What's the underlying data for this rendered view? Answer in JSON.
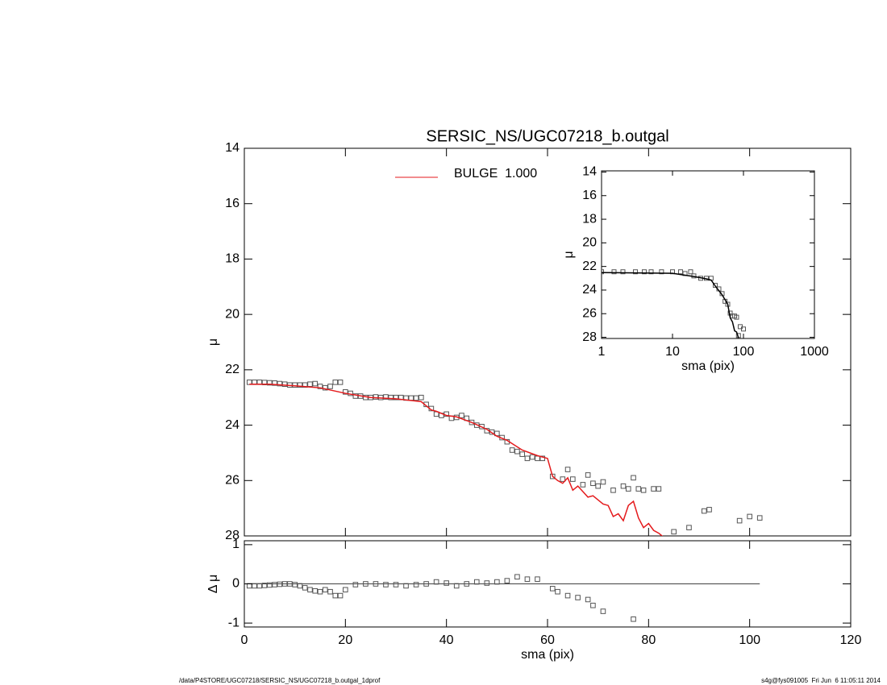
{
  "chart_data": [
    {
      "type": "scatter",
      "title": "SERSIC_NS/UGC07218_b.outgal",
      "y_label": "μ",
      "xlim": [
        0,
        120
      ],
      "ylim": [
        28,
        14
      ],
      "yticks": [
        14,
        16,
        18,
        20,
        22,
        24,
        26,
        28
      ],
      "legend": "top-right",
      "series": [
        {
          "style": "markers",
          "color": "#555555",
          "x": [
            1,
            2,
            3,
            4,
            5,
            6,
            7,
            8,
            9,
            10,
            11,
            12,
            13,
            14,
            15,
            16,
            17,
            18,
            19,
            20,
            21,
            22,
            23,
            24,
            25,
            26,
            27,
            28,
            29,
            30,
            31,
            32,
            33,
            34,
            35,
            36,
            37,
            38,
            39,
            40,
            41,
            42,
            43,
            44,
            45,
            46,
            47,
            48,
            49,
            50,
            51,
            52,
            53,
            54,
            55,
            56,
            57,
            58,
            59,
            61,
            63,
            64,
            65,
            67,
            68,
            69,
            70,
            71,
            73,
            75,
            76,
            77,
            78,
            79,
            81,
            82,
            85,
            88,
            91,
            92,
            98,
            100,
            102
          ],
          "values": [
            22.45,
            22.45,
            22.45,
            22.46,
            22.47,
            22.48,
            22.5,
            22.52,
            22.55,
            22.55,
            22.55,
            22.55,
            22.52,
            22.5,
            22.6,
            22.65,
            22.6,
            22.45,
            22.45,
            22.8,
            22.85,
            22.95,
            22.95,
            23.0,
            23.0,
            22.98,
            23.0,
            22.98,
            23.0,
            23.0,
            23.0,
            23.02,
            23.02,
            23.02,
            23.0,
            23.25,
            23.4,
            23.6,
            23.65,
            23.6,
            23.75,
            23.72,
            23.65,
            23.75,
            23.9,
            24.0,
            24.05,
            24.2,
            24.25,
            24.3,
            24.45,
            24.6,
            24.9,
            24.95,
            25.05,
            25.2,
            25.15,
            25.2,
            25.2,
            25.85,
            25.95,
            25.6,
            25.95,
            26.15,
            25.8,
            26.1,
            26.2,
            26.05,
            26.35,
            26.2,
            26.3,
            25.9,
            26.3,
            26.35,
            26.3,
            26.3,
            27.85,
            27.7,
            27.1,
            27.05,
            27.45,
            27.3,
            27.35
          ]
        },
        {
          "name": "BULGE  1.000",
          "style": "line",
          "color": "#e41a1c",
          "x": [
            1,
            5,
            10,
            15,
            20,
            25,
            30,
            35,
            36,
            37,
            38,
            40,
            42,
            45,
            48,
            50,
            52,
            55,
            58,
            60,
            61,
            62,
            63,
            64,
            65,
            66,
            67,
            68,
            69,
            70,
            71,
            72,
            73,
            74,
            75,
            76,
            77,
            78,
            79,
            80,
            81,
            82,
            83
          ],
          "values": [
            22.52,
            22.52,
            22.58,
            22.65,
            22.85,
            23.0,
            23.05,
            23.15,
            23.3,
            23.45,
            23.5,
            23.65,
            23.7,
            23.9,
            24.15,
            24.4,
            24.55,
            24.9,
            25.1,
            25.2,
            25.85,
            26.0,
            26.1,
            25.9,
            26.35,
            26.2,
            26.4,
            26.6,
            26.55,
            26.7,
            26.85,
            26.9,
            27.3,
            27.2,
            27.45,
            26.9,
            26.75,
            27.35,
            27.7,
            27.55,
            27.8,
            27.9,
            28.05
          ]
        }
      ]
    },
    {
      "type": "scatter",
      "x_label": "sma (pix)",
      "y_label": "Δ μ",
      "xlim": [
        0,
        120
      ],
      "xticks": [
        0,
        20,
        40,
        60,
        80,
        100,
        120
      ],
      "ylim": [
        -1.1,
        1.1
      ],
      "yticks": [
        -1,
        0,
        1
      ],
      "zero_line": {
        "y": 0,
        "x": [
          0,
          102
        ]
      },
      "series": [
        {
          "style": "markers",
          "color": "#555555",
          "x": [
            1,
            2,
            3,
            4,
            5,
            6,
            7,
            8,
            9,
            10,
            11,
            12,
            13,
            14,
            15,
            16,
            17,
            18,
            19,
            20,
            22,
            24,
            26,
            28,
            30,
            32,
            34,
            36,
            38,
            40,
            42,
            44,
            46,
            48,
            50,
            52,
            54,
            56,
            58,
            61,
            62,
            64,
            66,
            68,
            69,
            71,
            77
          ],
          "values": [
            -0.05,
            -0.05,
            -0.05,
            -0.04,
            -0.03,
            -0.02,
            -0.01,
            0,
            0,
            -0.02,
            -0.05,
            -0.1,
            -0.15,
            -0.18,
            -0.2,
            -0.15,
            -0.2,
            -0.3,
            -0.3,
            -0.15,
            -0.02,
            0,
            0,
            -0.02,
            -0.02,
            -0.05,
            -0.02,
            0,
            0.05,
            0.02,
            -0.05,
            0,
            0.05,
            0.02,
            0.05,
            0.08,
            0.18,
            0.12,
            0.12,
            -0.12,
            -0.2,
            -0.3,
            -0.35,
            -0.4,
            -0.55,
            -0.7,
            -0.9
          ]
        }
      ]
    },
    {
      "type": "scatter",
      "x_label": "sma (pix)",
      "y_label": "μ",
      "xlog": true,
      "xlim": [
        1,
        1000
      ],
      "xticks": [
        1,
        10,
        100,
        1000
      ],
      "ylim": [
        28.1,
        13.9
      ],
      "yticks": [
        14,
        16,
        18,
        20,
        22,
        24,
        26,
        28
      ],
      "series": [
        {
          "style": "markers",
          "color": "#555555",
          "x": [
            1,
            1.5,
            2,
            3,
            4,
            5,
            7,
            10,
            13,
            15,
            18,
            20,
            25,
            30,
            35,
            40,
            45,
            50,
            55,
            60,
            65,
            70,
            75,
            80,
            85,
            90,
            100
          ],
          "values": [
            22.45,
            22.45,
            22.45,
            22.45,
            22.45,
            22.45,
            22.45,
            22.45,
            22.45,
            22.6,
            22.45,
            22.8,
            23.0,
            23.0,
            23.0,
            23.6,
            23.9,
            24.3,
            24.95,
            25.2,
            25.95,
            26.2,
            26.2,
            26.3,
            27.85,
            27.1,
            27.3
          ]
        },
        {
          "style": "line",
          "color": "#000000",
          "x": [
            1,
            10,
            20,
            30,
            35,
            40,
            50,
            60,
            65,
            70,
            75,
            80,
            85
          ],
          "values": [
            22.52,
            22.58,
            22.85,
            23.05,
            23.15,
            23.65,
            24.4,
            25.2,
            26.35,
            26.7,
            27.45,
            27.55,
            28.05
          ]
        }
      ]
    }
  ],
  "footer": {
    "left": "/data/P4STORE/UGC07218/SERSIC_NS/UGC07218_b.outgal_1dprof",
    "right": "s4g@fys091005  Fri Jun  6 11:05:11 2014"
  }
}
